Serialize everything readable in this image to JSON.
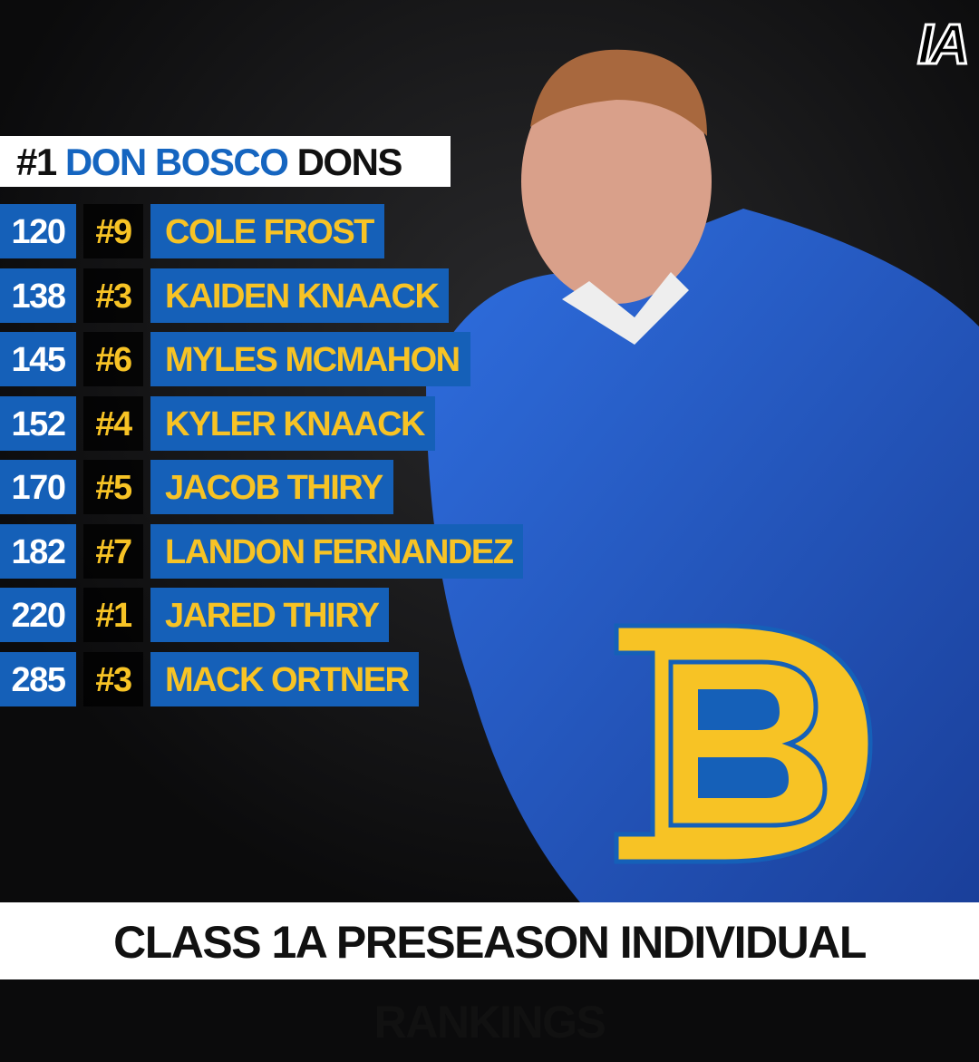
{
  "header": {
    "rank": "#1",
    "school": "DON BOSCO",
    "mascot": "DONS"
  },
  "logo": "IA",
  "rows": [
    {
      "weight": "120",
      "rank": "#9",
      "name": "COLE FROST"
    },
    {
      "weight": "138",
      "rank": "#3",
      "name": "KAIDEN KNAACK"
    },
    {
      "weight": "145",
      "rank": "#6",
      "name": "MYLES MCMAHON"
    },
    {
      "weight": "152",
      "rank": "#4",
      "name": "KYLER KNAACK"
    },
    {
      "weight": "170",
      "rank": "#5",
      "name": "JACOB THIRY"
    },
    {
      "weight": "182",
      "rank": "#7",
      "name": "LANDON FERNANDEZ"
    },
    {
      "weight": "220",
      "rank": "#1",
      "name": "JARED THIRY"
    },
    {
      "weight": "285",
      "rank": "#3",
      "name": "MACK ORTNER"
    }
  ],
  "footer": {
    "title": "CLASS 1A PRESEASON INDIVIDUAL RANKINGS"
  }
}
